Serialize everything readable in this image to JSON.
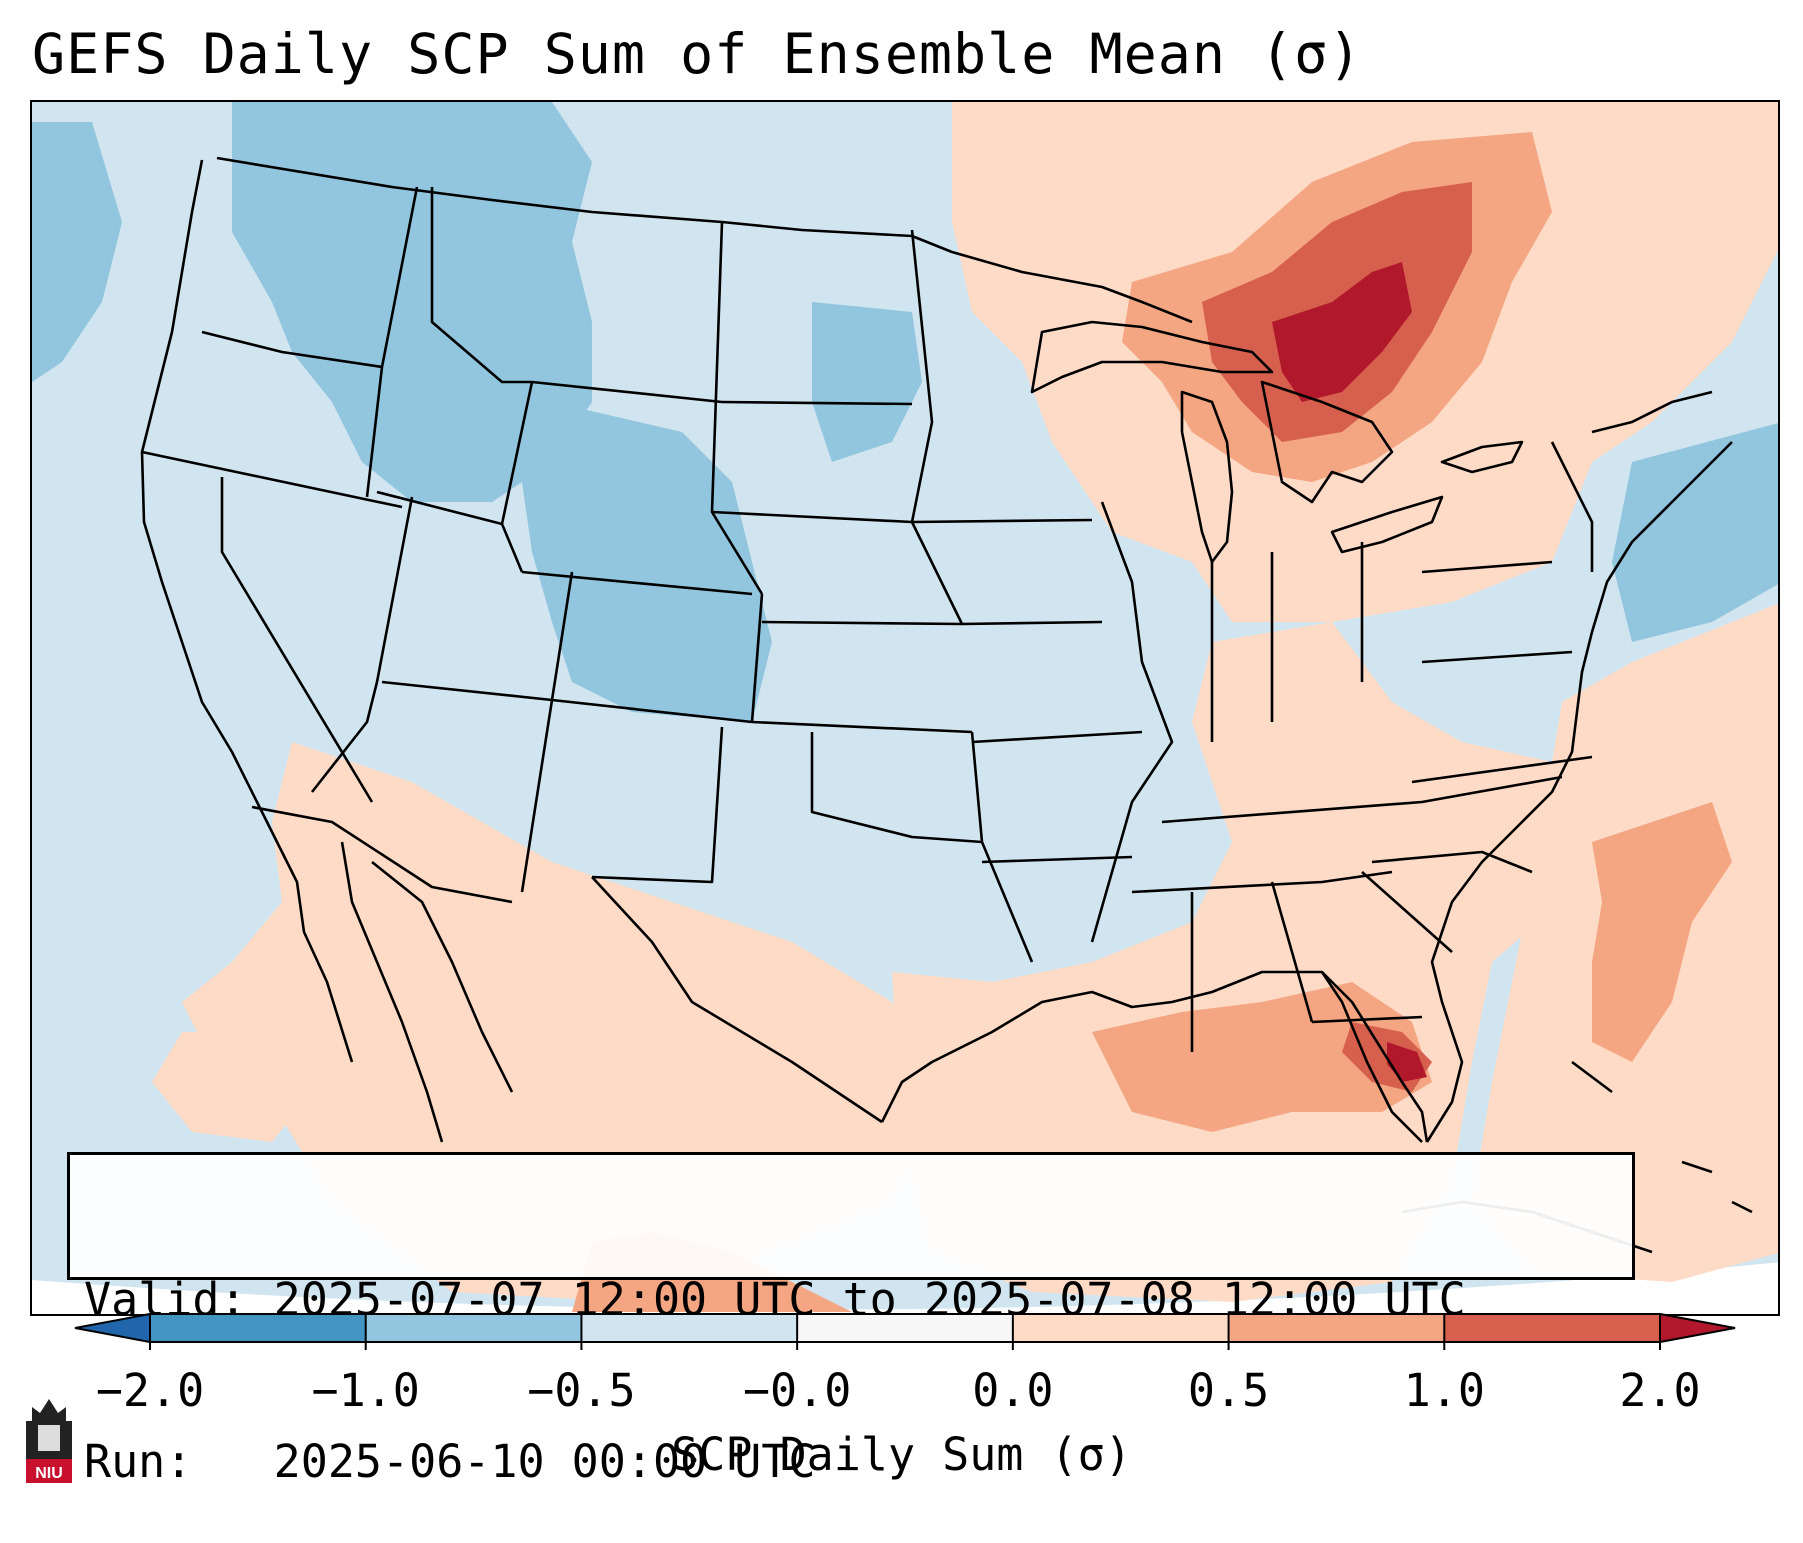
{
  "title": "GEFS Daily SCP Sum of Ensemble Mean (σ)",
  "map": {
    "region": "contiguous-united-states",
    "background_color": "#d1e5f0",
    "high_anomaly_areas": [
      {
        "name": "great-lakes-ontario",
        "level": 2.0
      },
      {
        "name": "upper-midwest",
        "level": 1.0
      },
      {
        "name": "florida-gulf",
        "level": 1.0
      },
      {
        "name": "western-atlantic",
        "level": 0.5
      },
      {
        "name": "northern-mexico",
        "level": 0.5
      }
    ],
    "low_anomaly_areas": [
      {
        "name": "northern-rockies",
        "level": -0.5
      },
      {
        "name": "central-rockies",
        "level": -0.5
      },
      {
        "name": "northwest-atlantic",
        "level": -0.5
      }
    ]
  },
  "info_box": {
    "valid_label": "Valid:",
    "valid_value": "2025-07-07 12:00 UTC to 2025-07-08 12:00 UTC",
    "run_label": "Run:",
    "run_value": "2025-06-10 00:00 UTC"
  },
  "colorbar": {
    "ticks": [
      "−2.0",
      "−1.0",
      "−0.5",
      "−0.0",
      "0.0",
      "0.5",
      "1.0",
      "2.0"
    ],
    "bins": [
      {
        "from": -2.0,
        "to": -1.0,
        "color": "#4393c3"
      },
      {
        "from": -1.0,
        "to": -0.5,
        "color": "#92c5de"
      },
      {
        "from": -0.5,
        "to": 0.0,
        "color": "#d1e5f0"
      },
      {
        "from": 0.0,
        "to": 0.0,
        "color": "#f7f7f7"
      },
      {
        "from": 0.0,
        "to": 0.5,
        "color": "#fddbc7"
      },
      {
        "from": 0.5,
        "to": 1.0,
        "color": "#f4a582"
      },
      {
        "from": 1.0,
        "to": 2.0,
        "color": "#d6604d"
      }
    ],
    "under_color": "#2166ac",
    "over_color": "#b2182b",
    "label": "SCP Daily Sum (σ)"
  },
  "colors": {
    "level_-0.5": "#92c5de",
    "level_0.5": "#fddbc7",
    "level_1.0": "#f4a582",
    "level_1.5": "#d6604d",
    "level_2.0": "#b2182b",
    "border": "#000000"
  },
  "logo": {
    "name": "NIU",
    "text": "NIU"
  }
}
